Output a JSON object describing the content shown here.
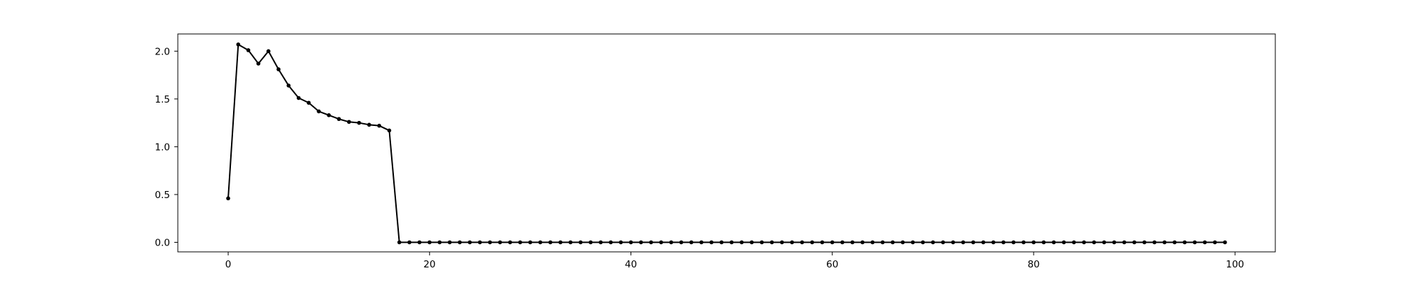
{
  "chart_data": {
    "type": "line",
    "title": "",
    "xlabel": "",
    "ylabel": "",
    "xlim": [
      -5,
      104
    ],
    "ylim": [
      -0.1,
      2.18
    ],
    "x_ticks": [
      0,
      20,
      40,
      60,
      80,
      100
    ],
    "y_ticks": [
      0.0,
      0.5,
      1.0,
      1.5,
      2.0
    ],
    "x_tick_labels": [
      "0",
      "20",
      "40",
      "60",
      "80",
      "100"
    ],
    "y_tick_labels": [
      "0.0",
      "0.5",
      "1.0",
      "1.5",
      "2.0"
    ],
    "grid": false,
    "line_color": "#000000",
    "marker": "dot",
    "series": [
      {
        "x": [
          0,
          1,
          2,
          3,
          4,
          5,
          6,
          7,
          8,
          9,
          10,
          11,
          12,
          13,
          14,
          15,
          16,
          17,
          18,
          19,
          20,
          21,
          22,
          23,
          24,
          25,
          26,
          27,
          28,
          29,
          30,
          31,
          32,
          33,
          34,
          35,
          36,
          37,
          38,
          39,
          40,
          41,
          42,
          43,
          44,
          45,
          46,
          47,
          48,
          49,
          50,
          51,
          52,
          53,
          54,
          55,
          56,
          57,
          58,
          59,
          60,
          61,
          62,
          63,
          64,
          65,
          66,
          67,
          68,
          69,
          70,
          71,
          72,
          73,
          74,
          75,
          76,
          77,
          78,
          79,
          80,
          81,
          82,
          83,
          84,
          85,
          86,
          87,
          88,
          89,
          90,
          91,
          92,
          93,
          94,
          95,
          96,
          97,
          98,
          99
        ],
        "y": [
          0.46,
          2.07,
          2.01,
          1.87,
          2.0,
          1.81,
          1.64,
          1.51,
          1.46,
          1.37,
          1.33,
          1.29,
          1.26,
          1.25,
          1.23,
          1.22,
          1.17,
          0,
          0,
          0,
          0,
          0,
          0,
          0,
          0,
          0,
          0,
          0,
          0,
          0,
          0,
          0,
          0,
          0,
          0,
          0,
          0,
          0,
          0,
          0,
          0,
          0,
          0,
          0,
          0,
          0,
          0,
          0,
          0,
          0,
          0,
          0,
          0,
          0,
          0,
          0,
          0,
          0,
          0,
          0,
          0,
          0,
          0,
          0,
          0,
          0,
          0,
          0,
          0,
          0,
          0,
          0,
          0,
          0,
          0,
          0,
          0,
          0,
          0,
          0,
          0,
          0,
          0,
          0,
          0,
          0,
          0,
          0,
          0,
          0,
          0,
          0,
          0,
          0,
          0,
          0,
          0,
          0,
          0,
          0
        ]
      }
    ]
  }
}
